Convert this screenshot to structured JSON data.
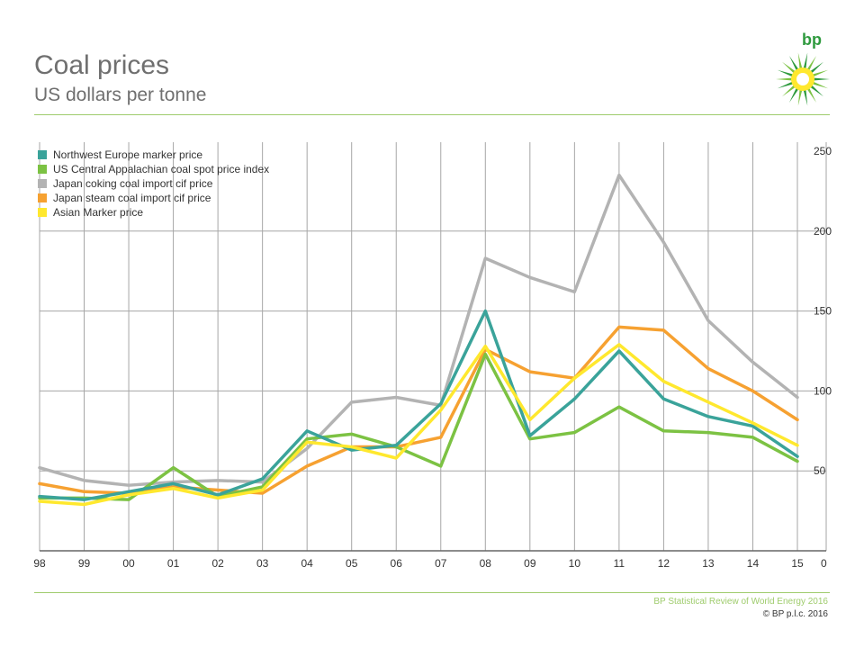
{
  "header": {
    "title": "Coal prices",
    "subtitle": "US dollars per tonne"
  },
  "logo": {
    "text": "bp",
    "icon": "bp-helios-sunburst-icon"
  },
  "footer": {
    "source": "BP Statistical Review of World Energy 2016",
    "copyright": "© BP p.l.c. 2016"
  },
  "chart_data": {
    "type": "line",
    "title": "Coal prices",
    "subtitle": "US dollars per tonne",
    "xlabel": "",
    "ylabel": "",
    "categories": [
      "98",
      "99",
      "00",
      "01",
      "02",
      "03",
      "04",
      "05",
      "06",
      "07",
      "08",
      "09",
      "10",
      "11",
      "12",
      "13",
      "14",
      "15"
    ],
    "ylim": [
      0,
      250
    ],
    "yticks": [
      0,
      50,
      100,
      150,
      200,
      250
    ],
    "y_axis_side": "right",
    "grid": true,
    "legend_position": "top-left",
    "series": [
      {
        "name": "Northwest Europe marker price",
        "color": "#3aa39a",
        "values": [
          34,
          32,
          37,
          42,
          35,
          45,
          75,
          63,
          66,
          92,
          150,
          72,
          95,
          125,
          95,
          84,
          78,
          59
        ]
      },
      {
        "name": "US Central Appalachian coal spot price index",
        "color": "#7cc243",
        "values": [
          33,
          33,
          32,
          52,
          34,
          40,
          70,
          73,
          65,
          53,
          123,
          70,
          74,
          90,
          75,
          74,
          71,
          56
        ]
      },
      {
        "name": "Japan coking coal import cif price",
        "color": "#b3b3b3",
        "values": [
          52,
          44,
          41,
          43,
          44,
          43,
          64,
          93,
          96,
          91,
          183,
          171,
          162,
          235,
          193,
          144,
          118,
          96
        ]
      },
      {
        "name": "Japan steam coal import cif price",
        "color": "#f6a131",
        "values": [
          42,
          37,
          36,
          40,
          38,
          36,
          53,
          65,
          65,
          71,
          126,
          112,
          108,
          140,
          138,
          114,
          100,
          82
        ]
      },
      {
        "name": "Asian Marker price",
        "color": "#ffe82e",
        "values": [
          31,
          29,
          35,
          39,
          33,
          38,
          68,
          65,
          58,
          88,
          128,
          82,
          108,
          129,
          106,
          93,
          80,
          66
        ]
      }
    ]
  }
}
